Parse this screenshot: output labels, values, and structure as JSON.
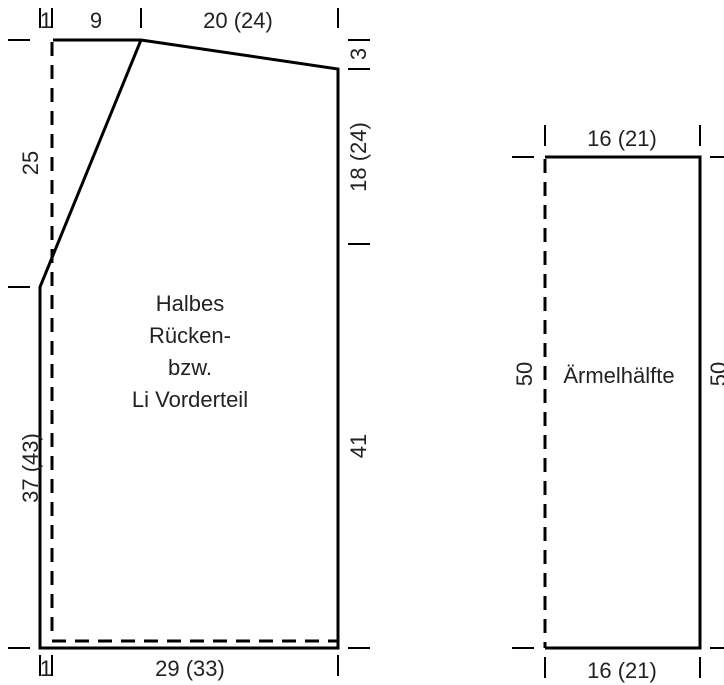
{
  "back_piece": {
    "dimensions": {
      "top_left_edge": "1",
      "neck_width": "9",
      "shoulder_width": "20 (24)",
      "shoulder_slope": "3",
      "armhole_depth": "18 (24)",
      "neck_depth": "25",
      "side_length": "41",
      "center_length": "37 (43)",
      "bottom_left_edge": "1",
      "hem_width": "29 (33)"
    },
    "label_lines": [
      "Halbes",
      "Rücken-",
      "bzw.",
      "Li Vorderteil"
    ]
  },
  "sleeve_piece": {
    "dimensions": {
      "top_width": "16 (21)",
      "bottom_width": "16 (21)",
      "left_length": "50",
      "right_length": "50"
    },
    "label": "Ärmelhälfte"
  }
}
